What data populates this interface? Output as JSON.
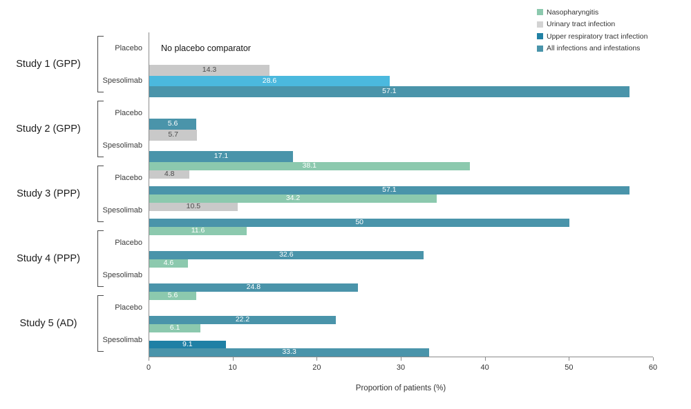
{
  "chart_data": {
    "type": "bar",
    "orientation": "horizontal",
    "xlabel": "Proportion of patients (%)",
    "xlim": [
      0,
      60
    ],
    "xticks": [
      "0",
      "10",
      "20",
      "30",
      "40",
      "50",
      "60"
    ],
    "grid": false,
    "axis_color": "#8a8a8a",
    "legend_position": "top-right",
    "legend": [
      {
        "label": "Nasopharyngitis",
        "color": "#8CC9AE"
      },
      {
        "label": "Urinary tract infection",
        "color": "#D3D3D3"
      },
      {
        "label": "Upper respiratory tract infection",
        "color": "#2181A4"
      },
      {
        "label": "All infections and infestations",
        "color": "#4A94AA"
      }
    ],
    "groups": [
      {
        "study": "Study 1 (GPP)",
        "arms": [
          {
            "arm": "Placebo",
            "slots": 3,
            "note": "No placebo comparator",
            "bars": []
          },
          {
            "arm": "Spesolimab",
            "slots": 3,
            "bars": [
              {
                "category": "Urinary tract infection",
                "value": 14.3,
                "display": "14.3",
                "slot": 0,
                "color": "#C9C9C9",
                "text_color": "#4A4A4A"
              },
              {
                "category": "Upper respiratory tract infection",
                "value": 28.6,
                "display": "28.6",
                "slot": 1,
                "color": "#4BB9DE",
                "text_color": "#FFFFFF"
              },
              {
                "category": "All infections and infestations",
                "value": 57.1,
                "display": "57.1",
                "slot": 2,
                "color": "#4A94AA",
                "text_color": "#FFFFFF"
              }
            ]
          }
        ]
      },
      {
        "study": "Study 2 (GPP)",
        "arms": [
          {
            "arm": "Placebo",
            "slots": 3,
            "bars": [
              {
                "category": "All infections and infestations",
                "value": 5.6,
                "display": "5.6",
                "slot": 2,
                "color": "#4A94AA",
                "text_color": "#FFFFFF"
              }
            ]
          },
          {
            "arm": "Spesolimab",
            "slots": 3,
            "bars": [
              {
                "category": "Urinary tract infection",
                "value": 5.7,
                "display": "5.7",
                "slot": 0,
                "color": "#C9C9C9",
                "text_color": "#4A4A4A"
              },
              {
                "category": "All infections and infestations",
                "value": 17.1,
                "display": "17.1",
                "slot": 2,
                "color": "#4A94AA",
                "text_color": "#FFFFFF"
              }
            ]
          }
        ]
      },
      {
        "study": "Study 3 (PPP)",
        "arms": [
          {
            "arm": "Placebo",
            "slots": 4,
            "bars": [
              {
                "category": "Nasopharyngitis",
                "value": 38.1,
                "display": "38.1",
                "slot": 0,
                "color": "#8CC9AE",
                "text_color": "#FFFFFF"
              },
              {
                "category": "Urinary tract infection",
                "value": 4.8,
                "display": "4.8",
                "slot": 1,
                "color": "#C9C9C9",
                "text_color": "#4A4A4A"
              },
              {
                "category": "All infections and infestations",
                "value": 57.1,
                "display": "57.1",
                "slot": 3,
                "color": "#4A94AA",
                "text_color": "#FFFFFF"
              }
            ]
          },
          {
            "arm": "Spesolimab",
            "slots": 4,
            "bars": [
              {
                "category": "Nasopharyngitis",
                "value": 34.2,
                "display": "34.2",
                "slot": 0,
                "color": "#8CC9AE",
                "text_color": "#FFFFFF"
              },
              {
                "category": "Urinary tract infection",
                "value": 10.5,
                "display": "10.5",
                "slot": 1,
                "color": "#C9C9C9",
                "text_color": "#4A4A4A"
              },
              {
                "category": "All infections and infestations",
                "value": 50,
                "display": "50",
                "slot": 3,
                "color": "#4A94AA",
                "text_color": "#FFFFFF"
              }
            ]
          }
        ]
      },
      {
        "study": "Study 4 (PPP)",
        "arms": [
          {
            "arm": "Placebo",
            "slots": 4,
            "bars": [
              {
                "category": "Nasopharyngitis",
                "value": 11.6,
                "display": "11.6",
                "slot": 0,
                "color": "#8CC9AE",
                "text_color": "#FFFFFF"
              },
              {
                "category": "All infections and infestations",
                "value": 32.6,
                "display": "32.6",
                "slot": 3,
                "color": "#4A94AA",
                "text_color": "#FFFFFF"
              }
            ]
          },
          {
            "arm": "Spesolimab",
            "slots": 4,
            "bars": [
              {
                "category": "Nasopharyngitis",
                "value": 4.6,
                "display": "4.6",
                "slot": 0,
                "color": "#8CC9AE",
                "text_color": "#FFFFFF"
              },
              {
                "category": "All infections and infestations",
                "value": 24.8,
                "display": "24.8",
                "slot": 3,
                "color": "#4A94AA",
                "text_color": "#FFFFFF"
              }
            ]
          }
        ]
      },
      {
        "study": "Study 5 (AD)",
        "arms": [
          {
            "arm": "Placebo",
            "slots": 4,
            "bars": [
              {
                "category": "Nasopharyngitis",
                "value": 5.6,
                "display": "5.6",
                "slot": 0,
                "color": "#8CC9AE",
                "text_color": "#FFFFFF"
              },
              {
                "category": "All infections and infestations",
                "value": 22.2,
                "display": "22.2",
                "slot": 3,
                "color": "#4A94AA",
                "text_color": "#FFFFFF"
              }
            ]
          },
          {
            "arm": "Spesolimab",
            "slots": 4,
            "bars": [
              {
                "category": "Nasopharyngitis",
                "value": 6.1,
                "display": "6.1",
                "slot": 0,
                "color": "#8CC9AE",
                "text_color": "#FFFFFF"
              },
              {
                "category": "Upper respiratory tract infection",
                "value": 9.1,
                "display": "9.1",
                "slot": 2,
                "color": "#1F80A5",
                "text_color": "#FFFFFF"
              },
              {
                "category": "All infections and infestations",
                "value": 33.3,
                "display": "33.3",
                "slot": 3,
                "color": "#4A94AA",
                "text_color": "#FFFFFF"
              }
            ]
          }
        ]
      }
    ]
  }
}
